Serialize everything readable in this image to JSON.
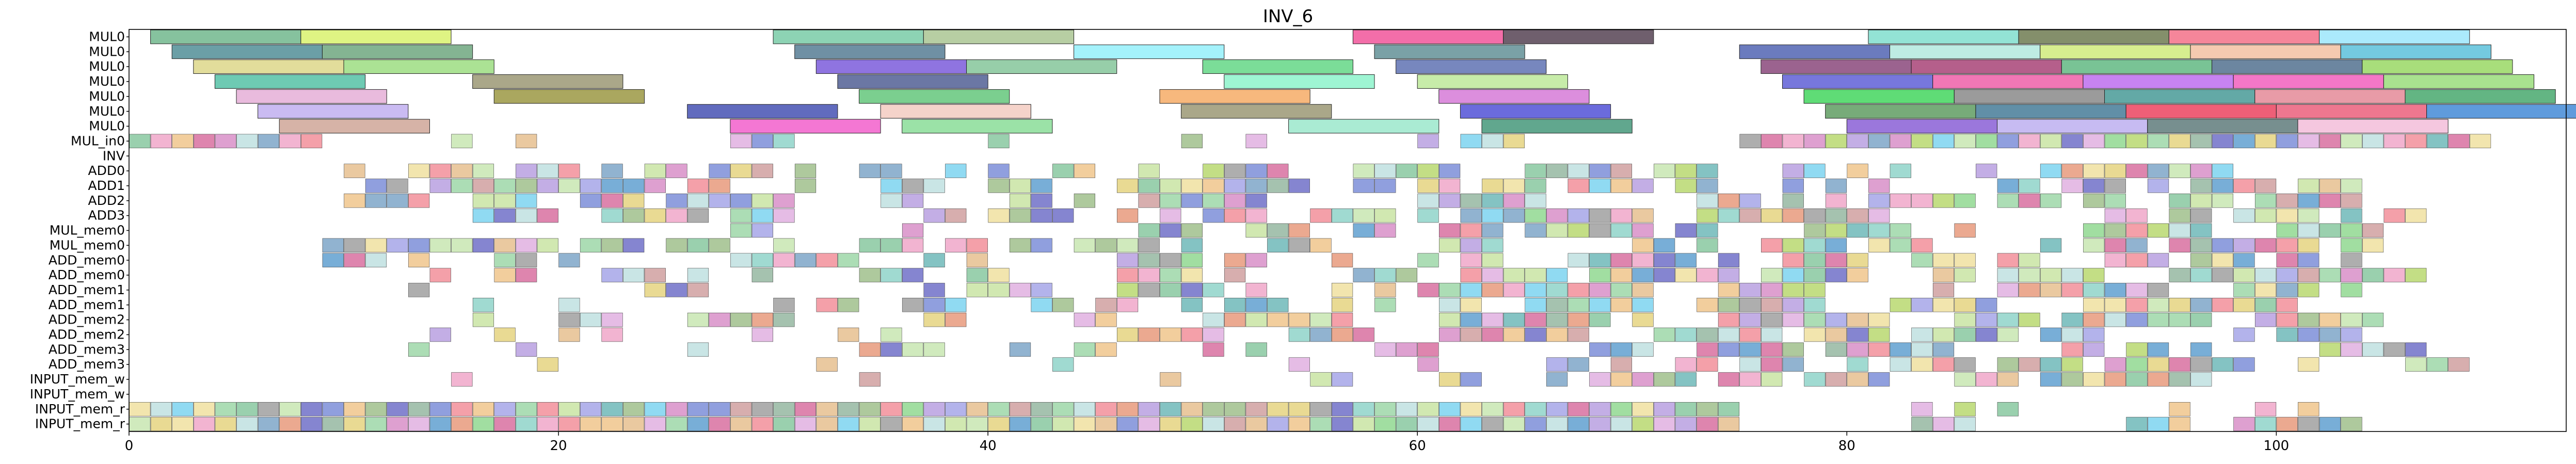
{
  "chart_data": {
    "type": "gantt",
    "title": "INV_6",
    "xlabel": "",
    "ylabel": "",
    "xlim": [
      0,
      113.5
    ],
    "x_ticks": [
      0,
      20,
      40,
      60,
      80,
      100
    ],
    "grid": false,
    "legend": "none",
    "rows": [
      "MUL0",
      "MUL0",
      "MUL0",
      "MUL0",
      "MUL0",
      "MUL0",
      "MUL0",
      "MUL_in0",
      "INV",
      "ADD0",
      "ADD1",
      "ADD2",
      "ADD3",
      "MUL_mem0",
      "MUL_mem0",
      "ADD_mem0",
      "ADD_mem0",
      "ADD_mem1",
      "ADD_mem1",
      "ADD_mem2",
      "ADD_mem2",
      "ADD_mem3",
      "ADD_mem3",
      "INPUT_mem_w",
      "INPUT_mem_w",
      "INPUT_mem_r",
      "INPUT_mem_r"
    ],
    "long_tasks": [
      {
        "row": 0,
        "start": 1,
        "end": 8,
        "color": "#5dae7e"
      },
      {
        "row": 0,
        "start": 8,
        "end": 15,
        "color": "#d4f05a"
      },
      {
        "row": 0,
        "start": 30,
        "end": 37,
        "color": "#67c49b"
      },
      {
        "row": 0,
        "start": 37,
        "end": 44,
        "color": "#9fbd84"
      },
      {
        "row": 0,
        "start": 57,
        "end": 64,
        "color": "#ef3d8c"
      },
      {
        "row": 0,
        "start": 64,
        "end": 71,
        "color": "#3f2a3c"
      },
      {
        "row": 0,
        "start": 81,
        "end": 88,
        "color": "#6fd9c7"
      },
      {
        "row": 0,
        "start": 88,
        "end": 95,
        "color": "#5b6a3a"
      },
      {
        "row": 0,
        "start": 95,
        "end": 102,
        "color": "#f15e78"
      },
      {
        "row": 0,
        "start": 102,
        "end": 109,
        "color": "#8fe3fb"
      },
      {
        "row": 1,
        "start": 2,
        "end": 9,
        "color": "#3a7f88"
      },
      {
        "row": 1,
        "start": 9,
        "end": 16,
        "color": "#5b9b6e"
      },
      {
        "row": 1,
        "start": 31,
        "end": 38,
        "color": "#3f6b86"
      },
      {
        "row": 1,
        "start": 44,
        "end": 51,
        "color": "#86eef9"
      },
      {
        "row": 1,
        "start": 58,
        "end": 65,
        "color": "#4e8288"
      },
      {
        "row": 1,
        "start": 75,
        "end": 82,
        "color": "#3a4fa8"
      },
      {
        "row": 1,
        "start": 82,
        "end": 89,
        "color": "#a8e6d9"
      },
      {
        "row": 1,
        "start": 89,
        "end": 96,
        "color": "#c9e86a"
      },
      {
        "row": 1,
        "start": 96,
        "end": 103,
        "color": "#f2b895"
      },
      {
        "row": 1,
        "start": 103,
        "end": 110,
        "color": "#45b8d6"
      },
      {
        "row": 2,
        "start": 3,
        "end": 10,
        "color": "#d8d27a"
      },
      {
        "row": 2,
        "start": 10,
        "end": 17,
        "color": "#8fd870"
      },
      {
        "row": 2,
        "start": 32,
        "end": 39,
        "color": "#6a45d6"
      },
      {
        "row": 2,
        "start": 39,
        "end": 46,
        "color": "#74bd8c"
      },
      {
        "row": 2,
        "start": 50,
        "end": 57,
        "color": "#4fd275"
      },
      {
        "row": 2,
        "start": 59,
        "end": 66,
        "color": "#4a5fa8"
      },
      {
        "row": 2,
        "start": 76,
        "end": 83,
        "color": "#7a2f6a"
      },
      {
        "row": 2,
        "start": 83,
        "end": 90,
        "color": "#9c2a64"
      },
      {
        "row": 2,
        "start": 90,
        "end": 97,
        "color": "#4caf72"
      },
      {
        "row": 2,
        "start": 97,
        "end": 104,
        "color": "#3b5d80"
      },
      {
        "row": 2,
        "start": 104,
        "end": 111,
        "color": "#8bd34f"
      },
      {
        "row": 3,
        "start": 4,
        "end": 11,
        "color": "#3db89a"
      },
      {
        "row": 3,
        "start": 16,
        "end": 23,
        "color": "#8e8a62"
      },
      {
        "row": 3,
        "start": 33,
        "end": 40,
        "color": "#3a4a86"
      },
      {
        "row": 3,
        "start": 51,
        "end": 58,
        "color": "#7df2c4"
      },
      {
        "row": 3,
        "start": 60,
        "end": 67,
        "color": "#b4e68c"
      },
      {
        "row": 3,
        "start": 77,
        "end": 84,
        "color": "#4a4ad0"
      },
      {
        "row": 3,
        "start": 84,
        "end": 91,
        "color": "#ec4a9c"
      },
      {
        "row": 3,
        "start": 91,
        "end": 98,
        "color": "#b45aec"
      },
      {
        "row": 3,
        "start": 98,
        "end": 105,
        "color": "#f04ab4"
      },
      {
        "row": 3,
        "start": 105,
        "end": 112,
        "color": "#8cd86a"
      },
      {
        "row": 4,
        "start": 5,
        "end": 12,
        "color": "#e2a4d2"
      },
      {
        "row": 4,
        "start": 17,
        "end": 24,
        "color": "#8e8a2a"
      },
      {
        "row": 4,
        "start": 34,
        "end": 41,
        "color": "#4fbf6a"
      },
      {
        "row": 4,
        "start": 48,
        "end": 55,
        "color": "#f4a052"
      },
      {
        "row": 4,
        "start": 61,
        "end": 68,
        "color": "#d068d2"
      },
      {
        "row": 4,
        "start": 78,
        "end": 85,
        "color": "#2ad048"
      },
      {
        "row": 4,
        "start": 85,
        "end": 92,
        "color": "#7a7a7a"
      },
      {
        "row": 4,
        "start": 92,
        "end": 99,
        "color": "#2f8c88"
      },
      {
        "row": 4,
        "start": 99,
        "end": 106,
        "color": "#e07a8a"
      },
      {
        "row": 4,
        "start": 106,
        "end": 113,
        "color": "#2f9c5a"
      },
      {
        "row": 5,
        "start": 6,
        "end": 13,
        "color": "#b8a4ee"
      },
      {
        "row": 5,
        "start": 26,
        "end": 33,
        "color": "#2c3aa8"
      },
      {
        "row": 5,
        "start": 35,
        "end": 42,
        "color": "#f2c4b8"
      },
      {
        "row": 5,
        "start": 49,
        "end": 56,
        "color": "#8e8a62"
      },
      {
        "row": 5,
        "start": 62,
        "end": 69,
        "color": "#3a3ad0"
      },
      {
        "row": 5,
        "start": 79,
        "end": 86,
        "color": "#4a8f4c"
      },
      {
        "row": 5,
        "start": 86,
        "end": 93,
        "color": "#2c6a8a"
      },
      {
        "row": 5,
        "start": 93,
        "end": 100,
        "color": "#e82a4a"
      },
      {
        "row": 5,
        "start": 100,
        "end": 107,
        "color": "#e84a6a"
      },
      {
        "row": 5,
        "start": 107,
        "end": 114,
        "color": "#2a7ad0"
      },
      {
        "row": 6,
        "start": 7,
        "end": 14,
        "color": "#c89a8a"
      },
      {
        "row": 6,
        "start": 28,
        "end": 35,
        "color": "#f04ac4"
      },
      {
        "row": 6,
        "start": 36,
        "end": 43,
        "color": "#7ad88a"
      },
      {
        "row": 6,
        "start": 54,
        "end": 61,
        "color": "#8ee4c4"
      },
      {
        "row": 6,
        "start": 63,
        "end": 70,
        "color": "#2c8a68"
      },
      {
        "row": 6,
        "start": 80,
        "end": 87,
        "color": "#7a4ad0"
      },
      {
        "row": 6,
        "start": 87,
        "end": 94,
        "color": "#b4a4ee"
      },
      {
        "row": 6,
        "start": 94,
        "end": 101,
        "color": "#4a6a6a"
      },
      {
        "row": 6,
        "start": 101,
        "end": 108,
        "color": "#f2b4d4"
      }
    ],
    "slots": "Row 7 to row 26 (MUL_in0 through INPUT_mem_r) hold unit-length tasks (start = integer t, end = t + 1). The populated time columns of each row are encoded below as inclusive start-end runs.",
    "short_task_runs": {
      "7": [
        [
          0,
          8
        ],
        [
          15,
          15
        ],
        [
          18,
          18
        ],
        [
          28,
          30
        ],
        [
          40,
          40
        ],
        [
          49,
          49
        ],
        [
          52,
          52
        ],
        [
          60,
          60
        ],
        [
          62,
          64
        ],
        [
          75,
          109
        ]
      ],
      "8": [],
      "9": [
        [
          10,
          15
        ],
        [
          16,
          22
        ],
        [
          24,
          29
        ],
        [
          31,
          31
        ],
        [
          34,
          35
        ],
        [
          37,
          40
        ],
        [
          43,
          44
        ],
        [
          47,
          47
        ],
        [
          50,
          53
        ],
        [
          57,
          62
        ],
        [
          65,
          73
        ],
        [
          77,
          82
        ],
        [
          86,
          86
        ],
        [
          89,
          97
        ],
        [
          100,
          100
        ],
        [
          107,
          107
        ]
      ],
      "10": [
        [
          11,
          21
        ],
        [
          22,
          27
        ],
        [
          31,
          31
        ],
        [
          35,
          37
        ],
        [
          40,
          42
        ],
        [
          46,
          54
        ],
        [
          57,
          70
        ],
        [
          72,
          73
        ],
        [
          76,
          81
        ],
        [
          87,
          103
        ]
      ],
      "11": [
        [
          10,
          13
        ],
        [
          16,
          18
        ],
        [
          21,
          23
        ],
        [
          25,
          30
        ],
        [
          35,
          36
        ],
        [
          41,
          45
        ],
        [
          47,
          53
        ],
        [
          60,
          65
        ],
        [
          73,
          86
        ],
        [
          87,
          92
        ],
        [
          94,
          103
        ]
      ],
      "12": [
        [
          11,
          11
        ],
        [
          16,
          19
        ],
        [
          22,
          26
        ],
        [
          28,
          30
        ],
        [
          37,
          38
        ],
        [
          40,
          43
        ],
        [
          46,
          52
        ],
        [
          55,
          58
        ],
        [
          60,
          70
        ],
        [
          73,
          81
        ],
        [
          84,
          84
        ],
        [
          91,
          101
        ],
        [
          103,
          106
        ]
      ],
      "13": [
        [
          28,
          29
        ],
        [
          31,
          31
        ],
        [
          36,
          36
        ],
        [
          47,
          49
        ],
        [
          52,
          54
        ],
        [
          56,
          58
        ],
        [
          61,
          63
        ],
        [
          65,
          70
        ],
        [
          72,
          73
        ],
        [
          77,
          82
        ],
        [
          85,
          85
        ],
        [
          91,
          96
        ],
        [
          100,
          104
        ]
      ],
      "14": [
        [
          9,
          17
        ],
        [
          18,
          20
        ],
        [
          21,
          23
        ],
        [
          24,
          27
        ],
        [
          29,
          30
        ],
        [
          34,
          36
        ],
        [
          38,
          42
        ],
        [
          44,
          49
        ],
        [
          52,
          55
        ],
        [
          61,
          63
        ],
        [
          70,
          73
        ],
        [
          76,
          83
        ],
        [
          89,
          104
        ]
      ],
      "15": [
        [
          9,
          11
        ],
        [
          13,
          13
        ],
        [
          17,
          18
        ],
        [
          20,
          20
        ],
        [
          23,
          23
        ],
        [
          28,
          33
        ],
        [
          37,
          39
        ],
        [
          46,
          49
        ],
        [
          51,
          52
        ],
        [
          56,
          56
        ],
        [
          60,
          64
        ],
        [
          67,
          74
        ],
        [
          77,
          80
        ],
        [
          82,
          88
        ],
        [
          91,
          103
        ]
      ],
      "16": [
        [
          14,
          14
        ],
        [
          17,
          18
        ],
        [
          22,
          26
        ],
        [
          29,
          29
        ],
        [
          34,
          36
        ],
        [
          39,
          40
        ],
        [
          46,
          49
        ],
        [
          51,
          51
        ],
        [
          57,
          59
        ],
        [
          61,
          67
        ],
        [
          68,
          74
        ],
        [
          76,
          80
        ],
        [
          82,
          91
        ],
        [
          94,
          106
        ]
      ],
      "17": [
        [
          13,
          13
        ],
        [
          17,
          17
        ],
        [
          24,
          26
        ],
        [
          30,
          30
        ],
        [
          37,
          42
        ],
        [
          46,
          50
        ],
        [
          52,
          53
        ],
        [
          56,
          58
        ],
        [
          60,
          71
        ],
        [
          74,
          78
        ],
        [
          83,
          94
        ],
        [
          98,
          104
        ]
      ],
      "18": [
        [
          16,
          16
        ],
        [
          20,
          20
        ],
        [
          24,
          25
        ],
        [
          30,
          33
        ],
        [
          36,
          38
        ],
        [
          42,
          46
        ],
        [
          48,
          49
        ],
        [
          51,
          53
        ],
        [
          56,
          59
        ],
        [
          61,
          71
        ],
        [
          72,
          78
        ],
        [
          81,
          86
        ],
        [
          91,
          100
        ]
      ],
      "19": [
        [
          16,
          16
        ],
        [
          20,
          22
        ],
        [
          26,
          30
        ],
        [
          37,
          38
        ],
        [
          44,
          45
        ],
        [
          50,
          56
        ],
        [
          61,
          70
        ],
        [
          74,
          81
        ],
        [
          84,
          96
        ],
        [
          99,
          104
        ]
      ],
      "20": [
        [
          14,
          14
        ],
        [
          17,
          17
        ],
        [
          20,
          22
        ],
        [
          27,
          29
        ],
        [
          33,
          35
        ],
        [
          46,
          50
        ],
        [
          54,
          57
        ],
        [
          61,
          67
        ],
        [
          71,
          81
        ],
        [
          83,
          91
        ],
        [
          97,
          103
        ]
      ],
      "21": [
        [
          13,
          13
        ],
        [
          18,
          18
        ],
        [
          26,
          26
        ],
        [
          34,
          37
        ],
        [
          41,
          45
        ],
        [
          50,
          50
        ],
        [
          52,
          53
        ],
        [
          58,
          60
        ],
        [
          67,
          70
        ],
        [
          73,
          84
        ],
        [
          90,
          96
        ],
        [
          101,
          106
        ]
      ],
      "22": [
        [
          19,
          19
        ],
        [
          32,
          32
        ],
        [
          43,
          43
        ],
        [
          54,
          54
        ],
        [
          60,
          60
        ],
        [
          66,
          69
        ],
        [
          72,
          77
        ],
        [
          80,
          90
        ],
        [
          92,
          98
        ],
        [
          100,
          102
        ],
        [
          106,
          108
        ]
      ],
      "23": [
        [
          15,
          15
        ],
        [
          34,
          34
        ],
        [
          48,
          48
        ],
        [
          55,
          56
        ],
        [
          61,
          62
        ],
        [
          66,
          66
        ],
        [
          68,
          71
        ],
        [
          72,
          81
        ],
        [
          84,
          96
        ]
      ],
      "24": [],
      "25": [],
      "26": [
        [
          0,
          74
        ],
        [
          75,
          76
        ],
        [
          79,
          79
        ],
        [
          84,
          85
        ],
        [
          94,
          94
        ],
        [
          95,
          100
        ]
      ]
    },
    "short_task_runs_second_row": {
      "25": [
        [
          0,
          74
        ],
        [
          83,
          83
        ],
        [
          85,
          85
        ],
        [
          87,
          87
        ],
        [
          95,
          95
        ],
        [
          99,
          99
        ],
        [
          101,
          101
        ]
      ],
      "26": [
        [
          0,
          74
        ],
        [
          83,
          85
        ],
        [
          93,
          95
        ],
        [
          98,
          103
        ]
      ]
    },
    "palette": [
      "#9ed7a8",
      "#e6c08f",
      "#7ea6c8",
      "#c9e4a3",
      "#f28f9a",
      "#8fd3c9",
      "#b9a0e0",
      "#f0a7c9",
      "#a0c08c",
      "#7dd3f0",
      "#e5d480",
      "#95b7a1",
      "#d88fc8",
      "#7c8ed8",
      "#c8e6b2",
      "#f0c58c",
      "#88c8a0",
      "#e89a7c",
      "#a6a6e8",
      "#b8d870",
      "#6fb8b8",
      "#d0a0a0",
      "#7070c8",
      "#c0e0e0",
      "#f0e0a0",
      "#90d890",
      "#d870a0",
      "#a0a0a0",
      "#60a0d0",
      "#e0b0e0"
    ]
  }
}
